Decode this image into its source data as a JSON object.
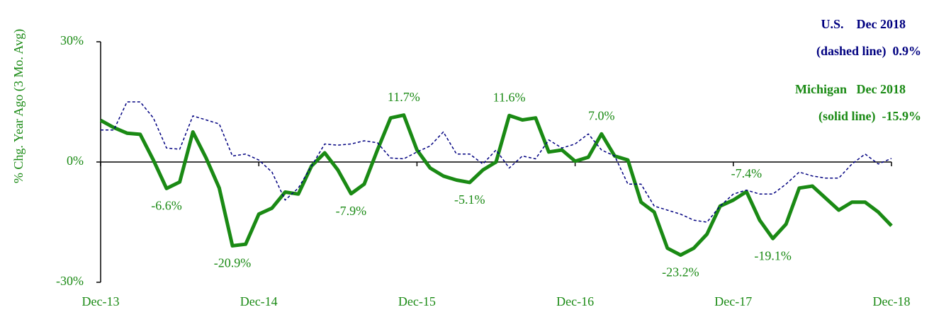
{
  "chart_data": {
    "type": "line",
    "y_label": "% Chg. Year Ago (3 Mo. Avg)",
    "categories": [
      "Dec-13",
      null,
      null,
      null,
      null,
      null,
      null,
      null,
      null,
      null,
      null,
      null,
      "Dec-14",
      null,
      null,
      null,
      null,
      null,
      null,
      null,
      null,
      null,
      null,
      null,
      "Dec-15",
      null,
      null,
      null,
      null,
      null,
      null,
      null,
      null,
      null,
      null,
      null,
      "Dec-16",
      null,
      null,
      null,
      null,
      null,
      null,
      null,
      null,
      null,
      null,
      null,
      "Dec-17",
      null,
      null,
      null,
      null,
      null,
      null,
      null,
      null,
      null,
      null,
      null,
      "Dec-18"
    ],
    "series": [
      {
        "color": "#1a8a14",
        "style": "solid",
        "values": [
          10.4,
          8.6,
          7.2,
          6.9,
          0.5,
          -6.6,
          -5,
          7.5,
          1,
          -6.5,
          -20.9,
          -20.5,
          -13,
          -11.5,
          -7.5,
          -8,
          -1,
          2.3,
          -2,
          -7.9,
          -5.5,
          3,
          11,
          11.7,
          3,
          -1.5,
          -3.5,
          -4.5,
          -5.1,
          -2,
          0,
          11.6,
          10.5,
          11,
          2.5,
          3,
          0.2,
          1.2,
          7.0,
          1.5,
          0.5,
          -10,
          -12.5,
          -21.5,
          -23.2,
          -21.5,
          -18,
          -11,
          -9.5,
          -7.4,
          -14.5,
          -19.1,
          -15.5,
          -6.5,
          -6,
          -9,
          -12,
          -10,
          -10,
          -12.5,
          -15.9
        ],
        "value_labels": [
          null,
          null,
          null,
          null,
          null,
          "-6.6%",
          null,
          null,
          null,
          null,
          "-20.9%",
          null,
          null,
          null,
          null,
          null,
          null,
          null,
          null,
          "-7.9%",
          null,
          null,
          null,
          "11.7%",
          null,
          null,
          null,
          null,
          "-5.1%",
          null,
          null,
          "11.6%",
          null,
          null,
          null,
          null,
          null,
          null,
          "7.0%",
          null,
          null,
          null,
          null,
          null,
          "-23.2%",
          null,
          null,
          null,
          null,
          "-7.4%",
          null,
          "-19.1%",
          null,
          null,
          null,
          null,
          null,
          null,
          null,
          null,
          null
        ]
      },
      {
        "color": "#000080",
        "style": "dashed",
        "values": [
          8,
          8,
          15,
          15,
          11,
          3.5,
          3.2,
          11.5,
          10.5,
          9.5,
          1.5,
          2,
          0.5,
          -2.5,
          -9.5,
          -6.5,
          -1,
          4.5,
          4.2,
          4.5,
          5.3,
          4.8,
          1,
          0.8,
          2.5,
          4,
          7.5,
          2,
          2,
          -0.5,
          3,
          -1.5,
          1.5,
          0.8,
          5.5,
          3.5,
          4.5,
          7,
          3,
          1.5,
          -5.5,
          -5.5,
          -11,
          -12,
          -13,
          -14.5,
          -15,
          -11,
          -8,
          -7,
          -8,
          -8,
          -5.5,
          -2.5,
          -3.5,
          -4,
          -4,
          -0.5,
          2,
          -0.5,
          0.9
        ]
      }
    ],
    "ylim": [
      -30,
      30
    ],
    "yticks": [
      {
        "value": -30,
        "label": "-30%"
      },
      {
        "value": 0,
        "label": "0%"
      },
      {
        "value": 30,
        "label": "30%"
      }
    ],
    "annotations": [
      {
        "color": "#000080",
        "lines": [
          "U.S.    Dec 2018",
          "(dashed line)  0.9%"
        ]
      },
      {
        "color": "#1a8a14",
        "lines": [
          "Michigan   Dec 2018",
          "(solid line)  -15.9%"
        ]
      }
    ]
  }
}
